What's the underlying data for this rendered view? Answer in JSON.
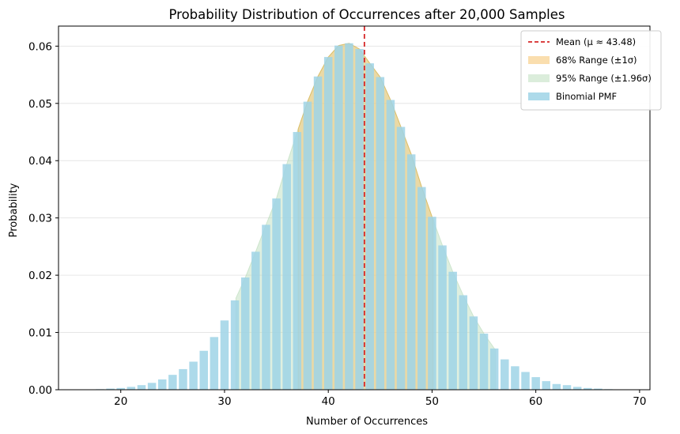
{
  "chart_data": {
    "type": "bar",
    "title": "Probability Distribution of Occurrences after 20,000 Samples",
    "xlabel": "Number of Occurrences",
    "ylabel": "Probability",
    "xlim": [
      14,
      71
    ],
    "ylim": [
      0,
      0.0635
    ],
    "xticks": [
      "20",
      "30",
      "40",
      "50",
      "60",
      "70"
    ],
    "yticks": [
      "0.00",
      "0.01",
      "0.02",
      "0.03",
      "0.04",
      "0.05",
      "0.06"
    ],
    "grid": "y",
    "legend_position": "top-right",
    "mean": 43.48,
    "range_68": [
      37.1,
      50.1
    ],
    "range_95": [
      31.1,
      56.1
    ],
    "x": [
      17,
      18,
      19,
      20,
      21,
      22,
      23,
      24,
      25,
      26,
      27,
      28,
      29,
      30,
      31,
      32,
      33,
      34,
      35,
      36,
      37,
      38,
      39,
      40,
      41,
      42,
      43,
      44,
      45,
      46,
      47,
      48,
      49,
      50,
      51,
      52,
      53,
      54,
      55,
      56,
      57,
      58,
      59,
      60,
      61,
      62,
      63,
      64,
      65,
      66,
      67,
      68,
      69
    ],
    "values": [
      5e-05,
      0.0001,
      0.0002,
      0.0003,
      0.0005,
      0.0008,
      0.0012,
      0.0018,
      0.0026,
      0.0036,
      0.0049,
      0.0068,
      0.0092,
      0.0121,
      0.0156,
      0.0196,
      0.0241,
      0.0288,
      0.0334,
      0.0394,
      0.045,
      0.0503,
      0.0547,
      0.0581,
      0.0601,
      0.0605,
      0.0595,
      0.057,
      0.0546,
      0.0506,
      0.0459,
      0.0411,
      0.0354,
      0.0302,
      0.0252,
      0.0206,
      0.0165,
      0.0128,
      0.0098,
      0.0072,
      0.0053,
      0.0041,
      0.0031,
      0.0022,
      0.0015,
      0.001,
      0.0008,
      0.0005,
      0.0003,
      0.0002,
      0.0001,
      5e-05,
      2e-05
    ],
    "series": [
      {
        "name": "Mean (μ ≈ 43.48)",
        "color": "#d62728",
        "style": "dashed-line"
      },
      {
        "name": "68% Range (±1σ)",
        "color": "#f5c36b",
        "style": "fill"
      },
      {
        "name": "95% Range (±1.96σ)",
        "color": "#b8dbb8",
        "style": "fill"
      },
      {
        "name": "Binomial PMF",
        "color": "#9fd4e6",
        "style": "bar"
      }
    ]
  }
}
